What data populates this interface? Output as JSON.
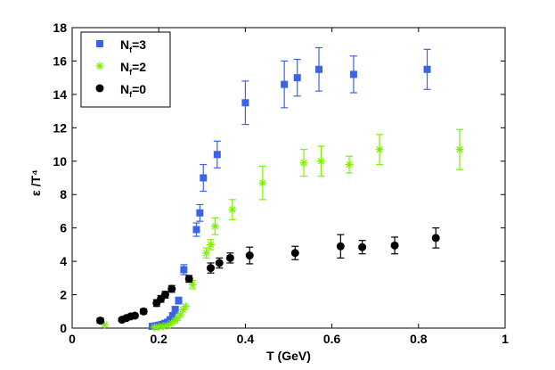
{
  "chart_data": {
    "type": "scatter",
    "title": "",
    "xlabel": "T (GeV)",
    "ylabel": "ε /T⁴",
    "xlim": [
      0,
      1
    ],
    "ylim": [
      0,
      18
    ],
    "xticks": [
      0,
      0.2,
      0.4,
      0.6,
      0.8,
      1
    ],
    "xtick_labels": [
      "0",
      "0.2",
      "0.4",
      "0.6",
      "0.8",
      "1"
    ],
    "yticks": [
      0,
      2,
      4,
      6,
      8,
      10,
      12,
      14,
      16,
      18
    ],
    "ytick_labels": [
      "0",
      "2",
      "4",
      "6",
      "8",
      "10",
      "12",
      "14",
      "16",
      "18"
    ],
    "grid": false,
    "legend_position": "top-left",
    "series": [
      {
        "name": "N_f=3",
        "label_main": "N",
        "label_sub": "f",
        "label_rest": "=3",
        "marker": "square",
        "color": "#3a63e6",
        "points": [
          {
            "x": 0.185,
            "y": 0.1,
            "err": 0
          },
          {
            "x": 0.19,
            "y": 0.12,
            "err": 0
          },
          {
            "x": 0.196,
            "y": 0.15,
            "err": 0
          },
          {
            "x": 0.202,
            "y": 0.18,
            "err": 0
          },
          {
            "x": 0.208,
            "y": 0.22,
            "err": 0
          },
          {
            "x": 0.214,
            "y": 0.28,
            "err": 0
          },
          {
            "x": 0.22,
            "y": 0.35,
            "err": 0
          },
          {
            "x": 0.226,
            "y": 0.5,
            "err": 0
          },
          {
            "x": 0.232,
            "y": 0.75,
            "err": 0
          },
          {
            "x": 0.238,
            "y": 1.1,
            "err": 0.2
          },
          {
            "x": 0.246,
            "y": 1.65,
            "err": 0.2
          },
          {
            "x": 0.258,
            "y": 3.5,
            "err": 0.3
          },
          {
            "x": 0.287,
            "y": 5.9,
            "err": 0.4
          },
          {
            "x": 0.295,
            "y": 6.9,
            "err": 0.5
          },
          {
            "x": 0.303,
            "y": 9.0,
            "err": 0.8
          },
          {
            "x": 0.335,
            "y": 10.4,
            "err": 0.8
          },
          {
            "x": 0.4,
            "y": 13.5,
            "err": 1.3
          },
          {
            "x": 0.49,
            "y": 14.6,
            "err": 1.4
          },
          {
            "x": 0.52,
            "y": 15.0,
            "err": 1.1
          },
          {
            "x": 0.57,
            "y": 15.5,
            "err": 1.3
          },
          {
            "x": 0.65,
            "y": 15.2,
            "err": 1.1
          },
          {
            "x": 0.82,
            "y": 15.5,
            "err": 1.2
          }
        ]
      },
      {
        "name": "N_f=2",
        "label_main": "N",
        "label_sub": "f",
        "label_rest": "=2",
        "marker": "asterisk",
        "color": "#7ff000",
        "points": [
          {
            "x": 0.075,
            "y": 0.2,
            "err": 0
          },
          {
            "x": 0.19,
            "y": 0.05,
            "err": 0
          },
          {
            "x": 0.2,
            "y": 0.08,
            "err": 0
          },
          {
            "x": 0.21,
            "y": 0.1,
            "err": 0
          },
          {
            "x": 0.22,
            "y": 0.15,
            "err": 0
          },
          {
            "x": 0.23,
            "y": 0.3,
            "err": 0
          },
          {
            "x": 0.238,
            "y": 0.45,
            "err": 0
          },
          {
            "x": 0.244,
            "y": 0.6,
            "err": 0
          },
          {
            "x": 0.25,
            "y": 0.8,
            "err": 0
          },
          {
            "x": 0.256,
            "y": 1.1,
            "err": 0
          },
          {
            "x": 0.262,
            "y": 1.3,
            "err": 0
          },
          {
            "x": 0.278,
            "y": 2.6,
            "err": 0.25
          },
          {
            "x": 0.31,
            "y": 4.5,
            "err": 0.3
          },
          {
            "x": 0.32,
            "y": 5.0,
            "err": 0.3
          },
          {
            "x": 0.33,
            "y": 6.1,
            "err": 0.5
          },
          {
            "x": 0.37,
            "y": 7.1,
            "err": 0.6
          },
          {
            "x": 0.44,
            "y": 8.7,
            "err": 1.0
          },
          {
            "x": 0.535,
            "y": 9.9,
            "err": 0.8
          },
          {
            "x": 0.575,
            "y": 10.0,
            "err": 0.9
          },
          {
            "x": 0.64,
            "y": 9.8,
            "err": 0.5
          },
          {
            "x": 0.71,
            "y": 10.7,
            "err": 0.9
          },
          {
            "x": 0.895,
            "y": 10.7,
            "err": 1.2
          }
        ]
      },
      {
        "name": "N_f=0",
        "label_main": "N",
        "label_sub": "f",
        "label_rest": "=0",
        "marker": "circle",
        "color": "#000000",
        "points": [
          {
            "x": 0.065,
            "y": 0.45,
            "err": 0.15
          },
          {
            "x": 0.115,
            "y": 0.5,
            "err": 0.1
          },
          {
            "x": 0.125,
            "y": 0.6,
            "err": 0.1
          },
          {
            "x": 0.135,
            "y": 0.7,
            "err": 0.1
          },
          {
            "x": 0.145,
            "y": 0.75,
            "err": 0.1
          },
          {
            "x": 0.165,
            "y": 1.0,
            "err": 0.15
          },
          {
            "x": 0.195,
            "y": 1.5,
            "err": 0.2
          },
          {
            "x": 0.205,
            "y": 1.75,
            "err": 0.2
          },
          {
            "x": 0.215,
            "y": 2.0,
            "err": 0.2
          },
          {
            "x": 0.23,
            "y": 2.35,
            "err": 0.2
          },
          {
            "x": 0.27,
            "y": 2.95,
            "err": 0.2
          },
          {
            "x": 0.32,
            "y": 3.6,
            "err": 0.3
          },
          {
            "x": 0.34,
            "y": 3.9,
            "err": 0.3
          },
          {
            "x": 0.365,
            "y": 4.2,
            "err": 0.3
          },
          {
            "x": 0.41,
            "y": 4.35,
            "err": 0.5
          },
          {
            "x": 0.515,
            "y": 4.5,
            "err": 0.4
          },
          {
            "x": 0.62,
            "y": 4.9,
            "err": 0.7
          },
          {
            "x": 0.67,
            "y": 4.85,
            "err": 0.4
          },
          {
            "x": 0.745,
            "y": 4.95,
            "err": 0.5
          },
          {
            "x": 0.84,
            "y": 5.4,
            "err": 0.6
          }
        ]
      }
    ]
  }
}
